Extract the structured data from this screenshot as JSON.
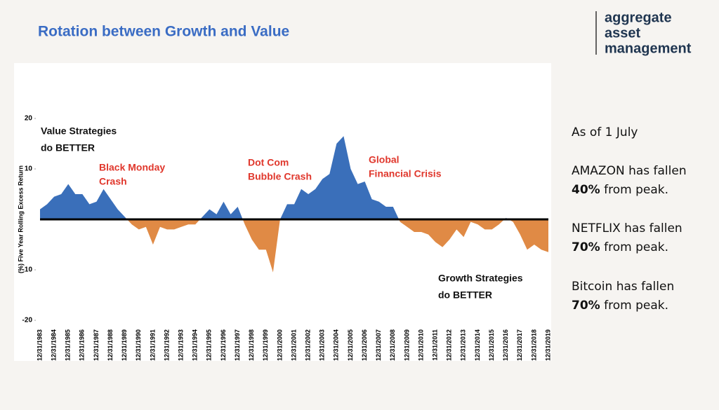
{
  "header": {
    "title": "Rotation between Growth and Value",
    "logo": [
      "aggregate",
      "asset",
      "management"
    ]
  },
  "chart_data": {
    "type": "area",
    "y_label": "(%) Five Year Rolling Excess Return",
    "categories": [
      "12/31/1983",
      null,
      "12/31/1984",
      null,
      "12/31/1985",
      null,
      "12/31/1986",
      null,
      "12/31/1987",
      null,
      "12/31/1988",
      null,
      "12/31/1989",
      null,
      "12/31/1990",
      null,
      "12/31/1991",
      null,
      "12/31/1992",
      null,
      "12/31/1993",
      null,
      "12/31/1994",
      null,
      "12/31/1995",
      null,
      "12/31/1996",
      null,
      "12/31/1997",
      null,
      "12/31/1998",
      null,
      "12/31/1999",
      null,
      "12/31/2000",
      null,
      "12/31/2001",
      null,
      "12/31/2002",
      null,
      "12/31/2003",
      null,
      "12/31/2004",
      null,
      "12/31/2005",
      null,
      "12/31/2006",
      null,
      "12/31/2007",
      null,
      "12/31/2008",
      null,
      "12/31/2009",
      null,
      "12/31/2010",
      null,
      "12/31/2011",
      null,
      "12/31/2012",
      null,
      "12/31/2013",
      null,
      "12/31/2014",
      null,
      "12/31/2015",
      null,
      "12/31/2016",
      null,
      "12/31/2017",
      null,
      "12/31/2018",
      null,
      "12/31/2019"
    ],
    "values": [
      2,
      3,
      4.5,
      5,
      7,
      5,
      5,
      3,
      3.5,
      6,
      4,
      2,
      0.5,
      -1,
      -2,
      -1.5,
      -5,
      -1.5,
      -2,
      -2,
      -1.5,
      -1,
      -1,
      0.5,
      2,
      1,
      3.5,
      1,
      2.5,
      -1,
      -4,
      -6,
      -6,
      -10.5,
      0,
      3,
      3,
      6,
      5,
      6,
      8,
      9,
      15,
      16.5,
      10,
      7,
      7.5,
      4,
      3.5,
      2.5,
      2.5,
      -0.5,
      -1.5,
      -2.5,
      -2.5,
      -3,
      -4.5,
      -5.5,
      -4,
      -2,
      -3.5,
      -0.5,
      -1,
      -2,
      -2,
      -1,
      0.3,
      -0.5,
      -3,
      -6,
      -5,
      -6,
      -6.5
    ],
    "colors": {
      "above": "#3a6fba",
      "below": "#e08a45"
    },
    "ylim": [
      -20,
      20
    ],
    "yticks": [
      20,
      10,
      -10,
      -20
    ],
    "annotations": [
      {
        "lines": [
          "Value Strategies",
          "do BETTER"
        ],
        "color": "#111111"
      },
      {
        "lines": [
          "Black Monday",
          "Crash"
        ],
        "color": "#e0372c"
      },
      {
        "lines": [
          "Dot Com",
          "Bubble Crash"
        ],
        "color": "#e0372c"
      },
      {
        "lines": [
          "Global",
          "Financial Crisis"
        ],
        "color": "#e0372c"
      },
      {
        "lines": [
          "Growth Strategies",
          "do BETTER"
        ],
        "color": "#111111"
      }
    ]
  },
  "notes": {
    "date": "As of 1 July",
    "items": [
      {
        "text": "AMAZON has fallen",
        "bold": "40%",
        "rest": "from peak."
      },
      {
        "text": "NETFLIX has fallen",
        "bold": "70%",
        "rest": "from peak."
      },
      {
        "text": "Bitcoin has fallen",
        "bold": "70%",
        "rest": "from peak."
      }
    ]
  }
}
